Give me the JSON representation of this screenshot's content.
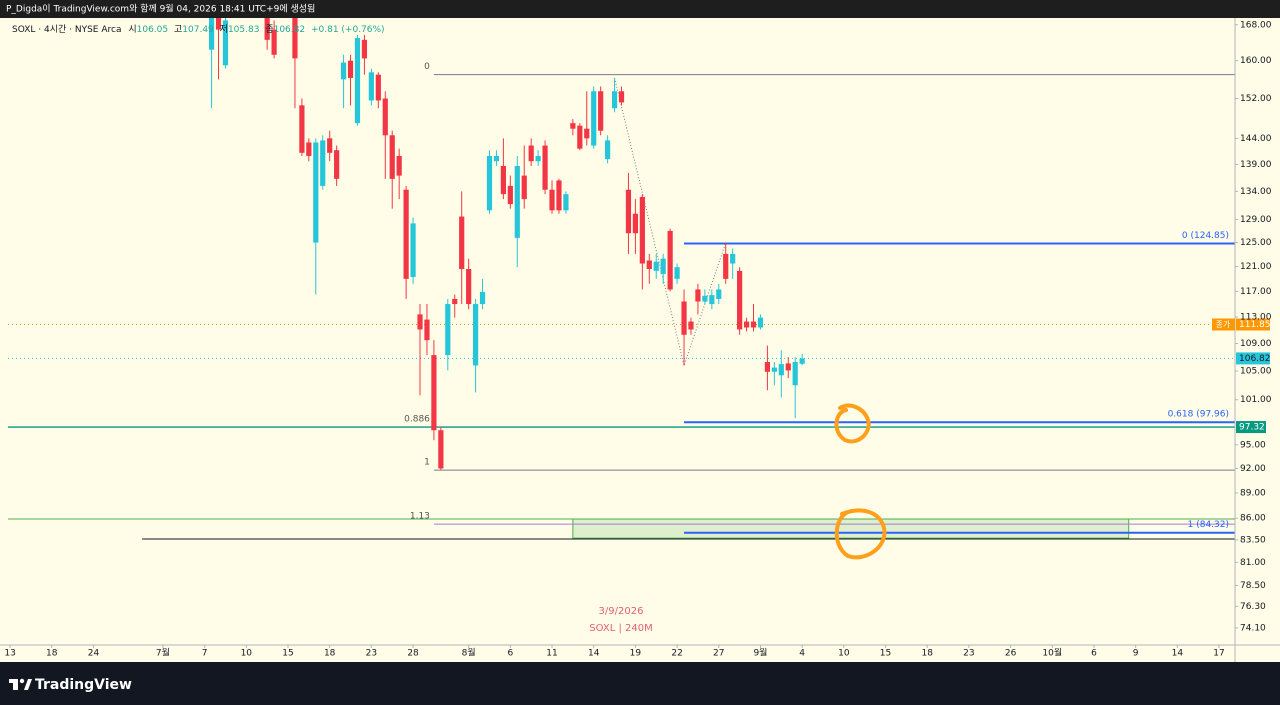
{
  "header": {
    "caption": "P_Digda이 TradingView.com와 함께 9월 04, 2026 18:41 UTC+9에 생성됨"
  },
  "chart_data": {
    "type": "candlestick",
    "log_scale": true,
    "legend": {
      "title": "SOXL · 4시간 · NYSE Arca",
      "keys": [
        "시",
        "고",
        "저",
        "종"
      ],
      "change": "+0.81 (+0.76%)"
    },
    "up_color": "#26c6da",
    "down_color": "#f23645",
    "xlim": [
      -0.3,
      176.3
    ],
    "ylim": [
      72.4,
      171.4
    ],
    "xticks": [
      {
        "value": 0,
        "label": "13"
      },
      {
        "value": 6,
        "label": "18"
      },
      {
        "value": 12,
        "label": "24"
      },
      {
        "value": 22,
        "label": "7월"
      },
      {
        "value": 28,
        "label": "7"
      },
      {
        "value": 34,
        "label": "10"
      },
      {
        "value": 40,
        "label": "15"
      },
      {
        "value": 46,
        "label": "18"
      },
      {
        "value": 52,
        "label": "23"
      },
      {
        "value": 58,
        "label": "28"
      },
      {
        "value": 66,
        "label": "8월"
      },
      {
        "value": 72,
        "label": "6"
      },
      {
        "value": 78,
        "label": "11"
      },
      {
        "value": 84,
        "label": "14"
      },
      {
        "value": 90,
        "label": "19"
      },
      {
        "value": 96,
        "label": "22"
      },
      {
        "value": 102,
        "label": "27"
      },
      {
        "value": 108,
        "label": "9월"
      },
      {
        "value": 114,
        "label": "4"
      },
      {
        "value": 120,
        "label": "10"
      },
      {
        "value": 126,
        "label": "15"
      },
      {
        "value": 132,
        "label": "18"
      },
      {
        "value": 138,
        "label": "23"
      },
      {
        "value": 144,
        "label": "26"
      },
      {
        "value": 150,
        "label": "10월"
      },
      {
        "value": 156,
        "label": "6"
      },
      {
        "value": 162,
        "label": "9"
      },
      {
        "value": 168,
        "label": "14"
      },
      {
        "value": 174,
        "label": "17"
      }
    ],
    "yticks": [
      {
        "value": 168,
        "label": "168.00"
      },
      {
        "value": 160,
        "label": "160.00"
      },
      {
        "value": 152,
        "label": "152.00"
      },
      {
        "value": 144,
        "label": "144.00"
      },
      {
        "value": 139,
        "label": "139.00"
      },
      {
        "value": 134,
        "label": "134.00"
      },
      {
        "value": 129,
        "label": "129.00"
      },
      {
        "value": 125,
        "label": "125.00"
      },
      {
        "value": 121,
        "label": "121.00"
      },
      {
        "value": 117,
        "label": "117.00"
      },
      {
        "value": 113,
        "label": "113.00"
      },
      {
        "value": 109,
        "label": "109.00"
      },
      {
        "value": 105,
        "label": "105.00"
      },
      {
        "value": 101,
        "label": "101.00"
      },
      {
        "value": 95,
        "label": "95.00"
      },
      {
        "value": 92,
        "label": "92.00"
      },
      {
        "value": 89,
        "label": "89.00"
      },
      {
        "value": 86,
        "label": "86.00"
      },
      {
        "value": 83.5,
        "label": "83.50"
      },
      {
        "value": 81,
        "label": "81.00"
      },
      {
        "value": 78.5,
        "label": "78.50"
      },
      {
        "value": 76.3,
        "label": "76.30"
      },
      {
        "value": 74.1,
        "label": "74.10"
      }
    ],
    "x": [
      29,
      30,
      31,
      37,
      38,
      41,
      42,
      43,
      44,
      45,
      46,
      47,
      48,
      49,
      50,
      51,
      52,
      53,
      54,
      55,
      56,
      57,
      58,
      59,
      60,
      61,
      62,
      63,
      64,
      65,
      66,
      67,
      68,
      69,
      70,
      71,
      72,
      73,
      74,
      75,
      76,
      77,
      78,
      79,
      80,
      81,
      82,
      83,
      84,
      85,
      86,
      87,
      88,
      89,
      90,
      91,
      92,
      93,
      94,
      95,
      96,
      97,
      98,
      99,
      100,
      101,
      102,
      103,
      104,
      105,
      106,
      107,
      108,
      109,
      110,
      111,
      112,
      113,
      114
    ],
    "open": [
      162.4,
      170.3,
      159,
      170.3,
      166.9,
      170.3,
      150.6,
      143.2,
      125,
      135,
      144,
      141.7,
      156,
      160,
      147,
      164.6,
      151.6,
      157,
      152,
      144.6,
      140.6,
      134.3,
      119.3,
      113.4,
      112.6,
      107.3,
      96.9,
      107.3,
      115.8,
      129.5,
      120.6,
      105.8,
      115,
      130.6,
      139.6,
      138.7,
      135,
      125.8,
      136.9,
      142.6,
      139.6,
      142.6,
      134.3,
      136,
      130.6,
      147,
      146.5,
      145.9,
      142.6,
      153.5,
      140,
      150,
      153.5,
      134.3,
      130,
      133,
      122,
      120.3,
      119.8,
      127,
      119,
      115.4,
      112.3,
      117.3,
      115.4,
      115,
      115.8,
      123.1,
      121.5,
      120.3,
      112.3,
      112.3,
      111.4,
      106.3,
      104.9,
      104.4,
      106.1,
      103,
      106.05
    ],
    "high": [
      171,
      171,
      170.3,
      171,
      169,
      171,
      152,
      144,
      144,
      144.6,
      145.5,
      142.6,
      161.3,
      161.3,
      165.7,
      165.7,
      158.3,
      157.5,
      153.5,
      145.5,
      142,
      135,
      129.3,
      115,
      115,
      109.5,
      97.4,
      115.8,
      116.5,
      134,
      122.3,
      115.8,
      119,
      141.7,
      141.7,
      144,
      136.9,
      140.6,
      142.6,
      144,
      141.7,
      143.6,
      136,
      136.3,
      134,
      147.8,
      147,
      153.5,
      154.5,
      154.5,
      144.6,
      156.3,
      154.5,
      137.4,
      132.6,
      133.5,
      123.1,
      123.1,
      123.1,
      127.4,
      121.5,
      117.3,
      112.9,
      118.2,
      117.3,
      117.3,
      118.2,
      125,
      124,
      120.9,
      112.9,
      115,
      113.4,
      108.7,
      106.3,
      108,
      107,
      107,
      107.49
    ],
    "low": [
      150,
      156,
      158.3,
      162.4,
      160.5,
      150,
      140.6,
      139.6,
      116.5,
      134.3,
      139.6,
      135,
      150,
      150.6,
      146.5,
      157,
      150.6,
      150,
      136.3,
      130.9,
      132.6,
      115.8,
      118.2,
      101.6,
      107.3,
      95.6,
      91.8,
      105.1,
      112.9,
      115,
      114.2,
      102,
      114.2,
      130,
      138.7,
      132.6,
      130.9,
      120.9,
      130.9,
      138.7,
      138.7,
      133.5,
      130,
      130,
      130,
      144.6,
      141.7,
      142.6,
      142,
      144.6,
      139.2,
      149.2,
      150.6,
      123.1,
      123.1,
      117.3,
      118.2,
      119,
      118.2,
      117,
      118.2,
      105.8,
      110.3,
      113.4,
      115,
      114.2,
      115,
      118.2,
      119,
      110.3,
      110.8,
      110.8,
      111.1,
      102.3,
      103,
      101.3,
      104,
      98.5,
      105.83
    ],
    "close": [
      169.6,
      166.9,
      169,
      164.6,
      161.3,
      160.5,
      141.2,
      140.6,
      143.2,
      143.6,
      141.2,
      136.3,
      159.6,
      156.3,
      165,
      160.5,
      157.5,
      151.6,
      144.6,
      136.3,
      136.9,
      119,
      128.3,
      111.1,
      109.5,
      96.9,
      92,
      115,
      115,
      120.6,
      115,
      115,
      116.9,
      140.6,
      140.6,
      133.5,
      131.7,
      138.7,
      132.6,
      139.6,
      140.6,
      134.3,
      130.6,
      130.6,
      133.5,
      145.9,
      142,
      144,
      153.5,
      145.5,
      143.6,
      153.5,
      151.2,
      126.6,
      126.6,
      121.5,
      120.6,
      121.8,
      122.3,
      117.3,
      120.9,
      110.3,
      111.1,
      115.4,
      116.3,
      116.4,
      117.3,
      119,
      123.1,
      111.1,
      111.4,
      111.4,
      112.9,
      104.9,
      105.5,
      106,
      105.1,
      106.3,
      106.82
    ],
    "fib": {
      "from": 61,
      "color": "#787b86",
      "levels": [
        {
          "label": "0",
          "value": 157
        },
        {
          "label": "0.886",
          "value": 97.32,
          "color": "#089981",
          "extend": "both"
        },
        {
          "label": "1",
          "value": 91.8
        },
        {
          "label": "1.13",
          "value": 85.3,
          "color": "#9c7fd6"
        }
      ]
    },
    "fib2": {
      "from": 97,
      "color": "#2962ff",
      "levels": [
        {
          "label": "0 (124.85)",
          "value": 124.85
        },
        {
          "label": "0.618 (97.96)",
          "value": 97.96
        },
        {
          "label": "1 (84.32)",
          "value": 84.32
        }
      ]
    },
    "hlines": [
      {
        "value": 85.9,
        "color": "#4caf50"
      },
      {
        "value": 83.6,
        "color": "#131722",
        "from": 19
      }
    ],
    "zone": {
      "from": 81,
      "to": 161,
      "top": 85.9,
      "bottom": 83.7,
      "color": "#4caf50"
    },
    "zigzag": {
      "x": [
        87,
        97,
        103
      ],
      "values": [
        156.3,
        105.8,
        125
      ]
    },
    "last_price": {
      "name": "종가",
      "value": 111.85,
      "color": "#ff9800"
    },
    "watermark": [
      "3/9/2026",
      "SOXL | 240M"
    ]
  },
  "footer": {
    "brand": "TradingView"
  }
}
